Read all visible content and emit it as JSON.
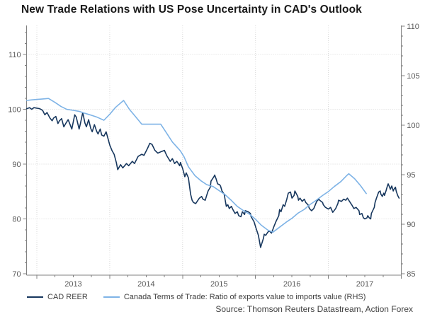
{
  "source": "Source: Thomson Reuters Datastream, Action Forex",
  "colors": {
    "background": "#ffffff",
    "title": "#1a1a1a",
    "axis_line": "#808080",
    "tick_label": "#595959",
    "gridline": "#d9d9d9",
    "legend_text": "#404040",
    "source_text": "#404040",
    "cad_reer": "#17375e",
    "terms_of_trade": "#7eb3e6"
  },
  "chart_data": {
    "type": "line",
    "title": "New Trade Relations with US Pose Uncertainty in CAD's Outlook",
    "grid": "dotted, at yearly x positions and every 10 units of left axis",
    "legend_position": "bottom-left",
    "x_axis": {
      "unit": "year",
      "range_years": [
        2012.86,
        2018.0
      ],
      "gridline_years": [
        2013,
        2014,
        2015,
        2016,
        2017
      ],
      "major_tick_years": [
        2013,
        2014,
        2015,
        2016,
        2017,
        2018
      ],
      "minor_tick": "quarterly",
      "year_labels": [
        {
          "text": "2013",
          "t": 2013.5
        },
        {
          "text": "2014",
          "t": 2014.5
        },
        {
          "text": "2015",
          "t": 2015.5
        },
        {
          "text": "2016",
          "t": 2016.5
        },
        {
          "text": "2017",
          "t": 2017.5
        }
      ]
    },
    "left_axis": {
      "min": 70,
      "max": 115.3,
      "major_ticks": [
        70,
        80,
        90,
        100,
        110
      ],
      "minor_step": 2,
      "gridlines": [
        80,
        90,
        100,
        110
      ]
    },
    "right_axis": {
      "min": 85,
      "max": 110.1,
      "major_ticks": [
        85,
        90,
        95,
        100,
        105,
        110
      ],
      "minor_step": 1,
      "gridlines": []
    },
    "series": [
      {
        "id": "cad-reer",
        "name": "CAD REER",
        "axis": "left",
        "color_key": "cad_reer",
        "points": [
          [
            2012.86,
            100.1
          ],
          [
            2012.9,
            100.3
          ],
          [
            2012.93,
            100.0
          ],
          [
            2012.96,
            100.3
          ],
          [
            2013.0,
            100.2
          ],
          [
            2013.04,
            100.1
          ],
          [
            2013.08,
            99.8
          ],
          [
            2013.11,
            99.0
          ],
          [
            2013.14,
            99.4
          ],
          [
            2013.18,
            98.4
          ],
          [
            2013.21,
            97.9
          ],
          [
            2013.23,
            98.4
          ],
          [
            2013.26,
            98.7
          ],
          [
            2013.29,
            97.4
          ],
          [
            2013.31,
            97.9
          ],
          [
            2013.34,
            98.3
          ],
          [
            2013.37,
            96.8
          ],
          [
            2013.4,
            97.5
          ],
          [
            2013.43,
            98.1
          ],
          [
            2013.48,
            96.4
          ],
          [
            2013.52,
            99.0
          ],
          [
            2013.54,
            98.6
          ],
          [
            2013.58,
            96.4
          ],
          [
            2013.6,
            97.5
          ],
          [
            2013.63,
            99.4
          ],
          [
            2013.66,
            97.5
          ],
          [
            2013.68,
            96.8
          ],
          [
            2013.71,
            98.1
          ],
          [
            2013.74,
            96.5
          ],
          [
            2013.76,
            95.9
          ],
          [
            2013.79,
            97.2
          ],
          [
            2013.82,
            96.0
          ],
          [
            2013.84,
            95.5
          ],
          [
            2013.87,
            96.4
          ],
          [
            2013.89,
            95.3
          ],
          [
            2013.92,
            95.1
          ],
          [
            2013.95,
            95.9
          ],
          [
            2013.98,
            94.5
          ],
          [
            2014.0,
            93.5
          ],
          [
            2014.03,
            92.5
          ],
          [
            2014.06,
            91.8
          ],
          [
            2014.09,
            90.3
          ],
          [
            2014.11,
            89.0
          ],
          [
            2014.15,
            89.9
          ],
          [
            2014.18,
            89.3
          ],
          [
            2014.23,
            90.1
          ],
          [
            2014.26,
            89.7
          ],
          [
            2014.31,
            90.5
          ],
          [
            2014.34,
            90.1
          ],
          [
            2014.39,
            91.4
          ],
          [
            2014.44,
            91.8
          ],
          [
            2014.47,
            91.6
          ],
          [
            2014.52,
            92.9
          ],
          [
            2014.55,
            93.8
          ],
          [
            2014.58,
            93.6
          ],
          [
            2014.62,
            92.5
          ],
          [
            2014.66,
            92.0
          ],
          [
            2014.71,
            92.3
          ],
          [
            2014.75,
            92.5
          ],
          [
            2014.78,
            91.6
          ],
          [
            2014.83,
            90.5
          ],
          [
            2014.86,
            91.0
          ],
          [
            2014.89,
            90.1
          ],
          [
            2014.92,
            90.5
          ],
          [
            2014.96,
            89.7
          ],
          [
            2014.97,
            90.3
          ],
          [
            2015.0,
            89.2
          ],
          [
            2015.02,
            88.2
          ],
          [
            2015.03,
            87.7
          ],
          [
            2015.05,
            88.4
          ],
          [
            2015.08,
            87.5
          ],
          [
            2015.11,
            84.5
          ],
          [
            2015.13,
            83.4
          ],
          [
            2015.15,
            83.0
          ],
          [
            2015.18,
            82.8
          ],
          [
            2015.2,
            83.2
          ],
          [
            2015.23,
            83.8
          ],
          [
            2015.26,
            84.1
          ],
          [
            2015.28,
            83.6
          ],
          [
            2015.31,
            83.4
          ],
          [
            2015.33,
            84.3
          ],
          [
            2015.35,
            85.1
          ],
          [
            2015.38,
            85.8
          ],
          [
            2015.39,
            86.9
          ],
          [
            2015.43,
            87.7
          ],
          [
            2015.44,
            88.0
          ],
          [
            2015.46,
            87.3
          ],
          [
            2015.48,
            86.4
          ],
          [
            2015.51,
            86.2
          ],
          [
            2015.52,
            86.0
          ],
          [
            2015.54,
            85.1
          ],
          [
            2015.57,
            84.5
          ],
          [
            2015.59,
            83.0
          ],
          [
            2015.6,
            82.3
          ],
          [
            2015.62,
            82.6
          ],
          [
            2015.64,
            81.9
          ],
          [
            2015.67,
            82.3
          ],
          [
            2015.69,
            81.7
          ],
          [
            2015.72,
            81.0
          ],
          [
            2015.75,
            81.3
          ],
          [
            2015.77,
            80.6
          ],
          [
            2015.8,
            80.4
          ],
          [
            2015.82,
            81.3
          ],
          [
            2015.85,
            80.8
          ],
          [
            2015.86,
            81.5
          ],
          [
            2015.9,
            81.3
          ],
          [
            2015.93,
            81.0
          ],
          [
            2015.94,
            80.4
          ],
          [
            2015.98,
            79.5
          ],
          [
            2016.01,
            78.2
          ],
          [
            2016.04,
            77.0
          ],
          [
            2016.07,
            74.8
          ],
          [
            2016.11,
            76.5
          ],
          [
            2016.12,
            77.2
          ],
          [
            2016.14,
            77.0
          ],
          [
            2016.17,
            77.6
          ],
          [
            2016.19,
            77.8
          ],
          [
            2016.22,
            77.4
          ],
          [
            2016.25,
            78.5
          ],
          [
            2016.28,
            79.5
          ],
          [
            2016.32,
            80.6
          ],
          [
            2016.33,
            81.7
          ],
          [
            2016.35,
            81.3
          ],
          [
            2016.38,
            82.6
          ],
          [
            2016.4,
            82.3
          ],
          [
            2016.43,
            83.6
          ],
          [
            2016.45,
            84.7
          ],
          [
            2016.48,
            84.9
          ],
          [
            2016.5,
            83.8
          ],
          [
            2016.53,
            84.3
          ],
          [
            2016.54,
            85.1
          ],
          [
            2016.58,
            84.1
          ],
          [
            2016.59,
            83.4
          ],
          [
            2016.61,
            83.8
          ],
          [
            2016.64,
            83.2
          ],
          [
            2016.67,
            83.6
          ],
          [
            2016.69,
            83.0
          ],
          [
            2016.72,
            82.6
          ],
          [
            2016.74,
            81.9
          ],
          [
            2016.77,
            81.5
          ],
          [
            2016.8,
            81.9
          ],
          [
            2016.84,
            83.2
          ],
          [
            2016.87,
            83.6
          ],
          [
            2016.88,
            83.4
          ],
          [
            2016.92,
            83.0
          ],
          [
            2016.93,
            82.6
          ],
          [
            2016.96,
            82.1
          ],
          [
            2017.0,
            81.8
          ],
          [
            2017.03,
            82.1
          ],
          [
            2017.06,
            81.2
          ],
          [
            2017.1,
            81.9
          ],
          [
            2017.13,
            82.8
          ],
          [
            2017.14,
            83.4
          ],
          [
            2017.18,
            83.2
          ],
          [
            2017.21,
            83.6
          ],
          [
            2017.24,
            83.4
          ],
          [
            2017.26,
            83.8
          ],
          [
            2017.29,
            83.2
          ],
          [
            2017.32,
            82.6
          ],
          [
            2017.35,
            81.9
          ],
          [
            2017.38,
            82.1
          ],
          [
            2017.42,
            81.5
          ],
          [
            2017.43,
            80.8
          ],
          [
            2017.46,
            81.0
          ],
          [
            2017.48,
            80.2
          ],
          [
            2017.5,
            80.0
          ],
          [
            2017.53,
            80.2
          ],
          [
            2017.54,
            80.6
          ],
          [
            2017.56,
            80.2
          ],
          [
            2017.58,
            80.0
          ],
          [
            2017.59,
            81.0
          ],
          [
            2017.63,
            82.1
          ],
          [
            2017.64,
            83.0
          ],
          [
            2017.66,
            83.8
          ],
          [
            2017.69,
            84.9
          ],
          [
            2017.71,
            85.1
          ],
          [
            2017.72,
            84.5
          ],
          [
            2017.74,
            84.1
          ],
          [
            2017.76,
            84.7
          ],
          [
            2017.77,
            84.3
          ],
          [
            2017.79,
            85.1
          ],
          [
            2017.81,
            86.0
          ],
          [
            2017.82,
            86.4
          ],
          [
            2017.84,
            85.8
          ],
          [
            2017.85,
            85.4
          ],
          [
            2017.87,
            86.0
          ],
          [
            2017.89,
            85.1
          ],
          [
            2017.9,
            85.4
          ],
          [
            2017.92,
            85.8
          ],
          [
            2017.93,
            85.1
          ],
          [
            2017.95,
            84.3
          ],
          [
            2017.97,
            83.8
          ]
        ]
      },
      {
        "id": "terms-of-trade",
        "name": "Canada Terms of Trade: Ratio of exports value to imports value (RHS)",
        "axis": "right",
        "color_key": "terms_of_trade",
        "points": [
          [
            2012.86,
            102.5
          ],
          [
            2012.92,
            102.55
          ],
          [
            2013.0,
            102.6
          ],
          [
            2013.08,
            102.65
          ],
          [
            2013.16,
            102.7
          ],
          [
            2013.25,
            102.3
          ],
          [
            2013.33,
            101.9
          ],
          [
            2013.41,
            101.6
          ],
          [
            2013.5,
            101.5
          ],
          [
            2013.58,
            101.4
          ],
          [
            2013.66,
            101.2
          ],
          [
            2013.75,
            101.0
          ],
          [
            2013.83,
            100.8
          ],
          [
            2013.92,
            100.5
          ],
          [
            2014.0,
            101.1
          ],
          [
            2014.08,
            101.8
          ],
          [
            2014.19,
            102.5
          ],
          [
            2014.27,
            101.6
          ],
          [
            2014.35,
            100.9
          ],
          [
            2014.44,
            100.1
          ],
          [
            2014.52,
            100.1
          ],
          [
            2014.61,
            100.1
          ],
          [
            2014.7,
            100.1
          ],
          [
            2014.78,
            99.2
          ],
          [
            2014.86,
            98.3
          ],
          [
            2014.97,
            97.4
          ],
          [
            2015.02,
            96.8
          ],
          [
            2015.08,
            95.8
          ],
          [
            2015.17,
            94.9
          ],
          [
            2015.25,
            94.4
          ],
          [
            2015.33,
            94.0
          ],
          [
            2015.42,
            93.8
          ],
          [
            2015.5,
            93.4
          ],
          [
            2015.58,
            93.0
          ],
          [
            2015.67,
            92.4
          ],
          [
            2015.75,
            91.8
          ],
          [
            2015.83,
            91.4
          ],
          [
            2015.92,
            91.0
          ],
          [
            2016.0,
            90.5
          ],
          [
            2016.08,
            89.9
          ],
          [
            2016.17,
            89.4
          ],
          [
            2016.24,
            89.2
          ],
          [
            2016.33,
            89.7
          ],
          [
            2016.42,
            90.2
          ],
          [
            2016.5,
            90.6
          ],
          [
            2016.58,
            91.1
          ],
          [
            2016.67,
            91.5
          ],
          [
            2016.75,
            92.0
          ],
          [
            2016.83,
            92.4
          ],
          [
            2016.92,
            92.9
          ],
          [
            2017.0,
            93.3
          ],
          [
            2017.08,
            93.8
          ],
          [
            2017.17,
            94.3
          ],
          [
            2017.25,
            94.9
          ],
          [
            2017.28,
            95.1
          ],
          [
            2017.36,
            94.6
          ],
          [
            2017.44,
            93.9
          ],
          [
            2017.52,
            93.1
          ]
        ]
      }
    ]
  }
}
